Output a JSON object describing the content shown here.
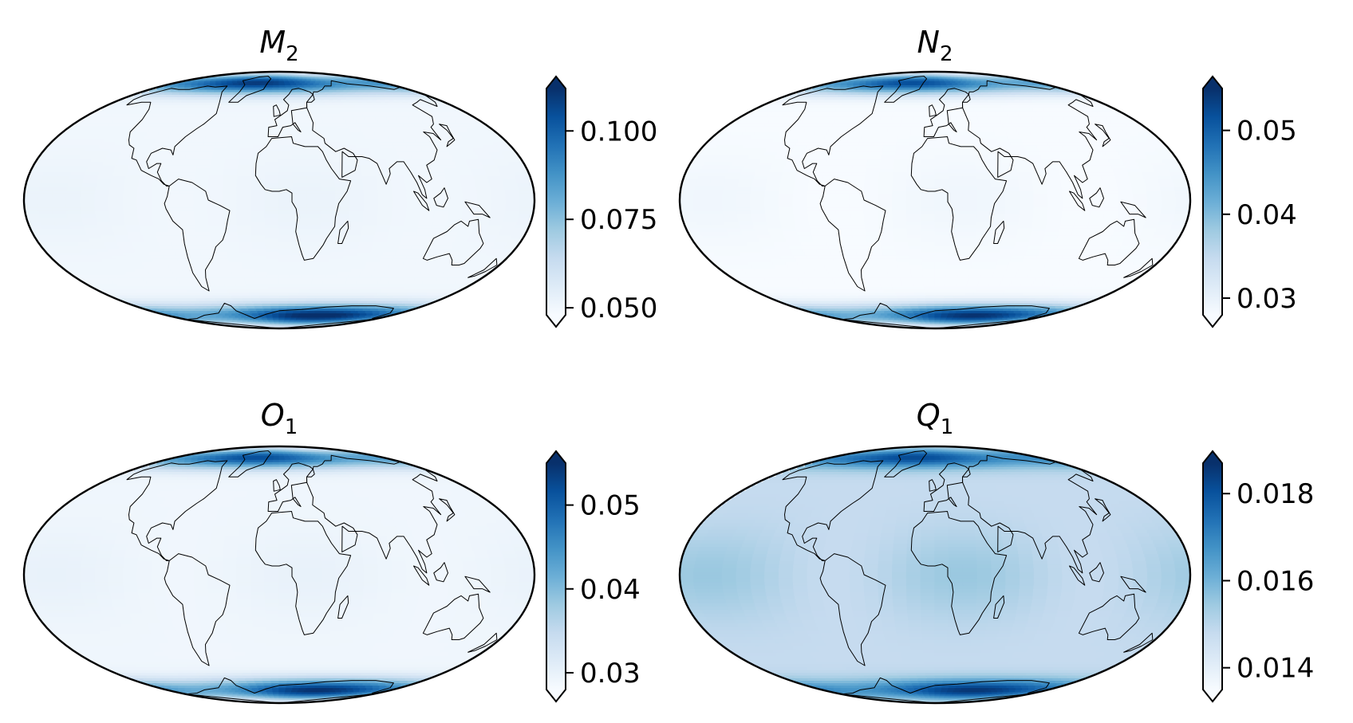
{
  "figure": {
    "colormap": "Blues",
    "projection": "Mollweide",
    "colormap_stops": [
      "#f7fbff",
      "#deebf7",
      "#c6dbef",
      "#9ecae1",
      "#6baed6",
      "#4292c6",
      "#2171b5",
      "#08519c",
      "#08306b"
    ],
    "outline_color": "#000000"
  },
  "panels": [
    {
      "title_letter": "M",
      "title_sub": "2",
      "colorbar": {
        "extend": "both",
        "ticks": [
          {
            "value": 0.1,
            "label": "0.100"
          },
          {
            "value": 0.075,
            "label": "0.075"
          },
          {
            "value": 0.05,
            "label": "0.050"
          }
        ],
        "vmin": 0.048,
        "vmax": 0.112
      },
      "field": {
        "base": 0.05,
        "polar_north": 0.11,
        "polar_south": 0.115,
        "midlat_band": 0.052
      }
    },
    {
      "title_letter": "N",
      "title_sub": "2",
      "colorbar": {
        "extend": "both",
        "ticks": [
          {
            "value": 0.05,
            "label": "0.05"
          },
          {
            "value": 0.04,
            "label": "0.04"
          },
          {
            "value": 0.03,
            "label": "0.03"
          }
        ],
        "vmin": 0.028,
        "vmax": 0.055
      },
      "field": {
        "base": 0.028,
        "polar_north": 0.052,
        "polar_south": 0.055,
        "midlat_band": 0.029
      }
    },
    {
      "title_letter": "O",
      "title_sub": "1",
      "colorbar": {
        "extend": "both",
        "ticks": [
          {
            "value": 0.05,
            "label": "0.05"
          },
          {
            "value": 0.04,
            "label": "0.04"
          },
          {
            "value": 0.03,
            "label": "0.03"
          }
        ],
        "vmin": 0.028,
        "vmax": 0.055
      },
      "field": {
        "base": 0.029,
        "polar_north": 0.052,
        "polar_south": 0.055,
        "midlat_band": 0.03
      }
    },
    {
      "title_letter": "Q",
      "title_sub": "1",
      "colorbar": {
        "extend": "both",
        "ticks": [
          {
            "value": 0.018,
            "label": "0.018"
          },
          {
            "value": 0.016,
            "label": "0.016"
          },
          {
            "value": 0.014,
            "label": "0.014"
          }
        ],
        "vmin": 0.0135,
        "vmax": 0.0187
      },
      "field": {
        "base": 0.0148,
        "polar_north": 0.0182,
        "polar_south": 0.0186,
        "midlat_band": 0.0155
      }
    }
  ]
}
